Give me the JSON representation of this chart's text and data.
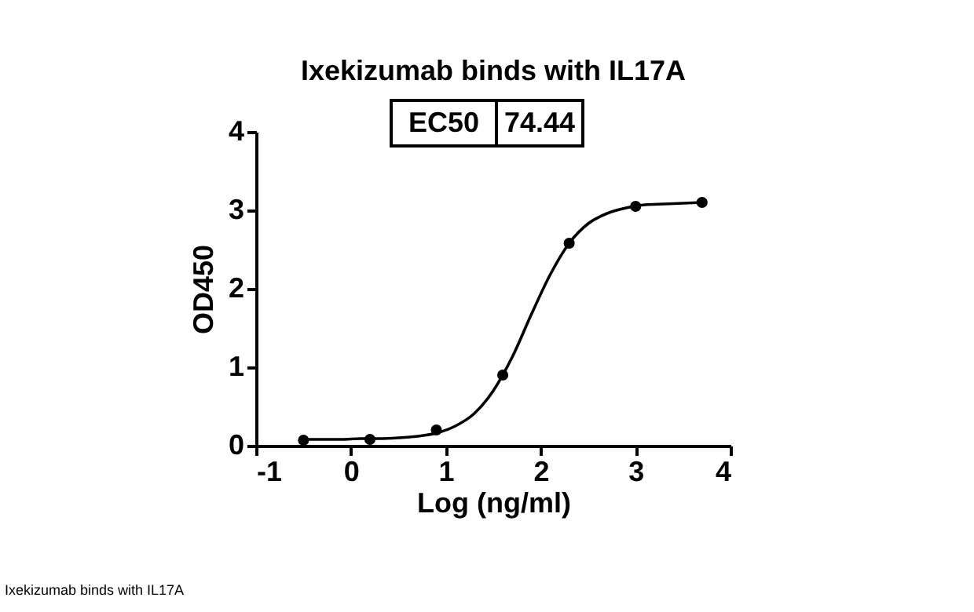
{
  "chart_data": {
    "type": "scatter",
    "title": "Ixekizumab binds with IL17A",
    "xlabel": "Log (ng/ml)",
    "ylabel": "OD450",
    "annotations": [
      "EC50",
      "74.44",
      "Ixekizumab binds with IL17A"
    ],
    "xlim": [
      -1,
      4
    ],
    "xticks": [
      -1,
      0,
      1,
      2,
      3,
      4
    ],
    "ylim": [
      0,
      4
    ],
    "yticks": [
      0,
      1,
      2,
      3,
      4
    ],
    "series": [
      {
        "marker": "circle",
        "color": "#000000",
        "x": [
          -0.5,
          0.2,
          0.9,
          1.6,
          2.3,
          3.0,
          3.7
        ],
        "values": [
          0.07,
          0.08,
          0.2,
          0.9,
          2.58,
          3.05,
          3.1
        ]
      },
      {
        "type": "line",
        "marker": "none",
        "color": "#000000",
        "x": [
          -0.5,
          -0.3,
          -0.1,
          0.1,
          0.3,
          0.5,
          0.7,
          0.9,
          1.1,
          1.3,
          1.5,
          1.7,
          1.9,
          2.1,
          2.3,
          2.5,
          2.7,
          2.9,
          3.1,
          3.3,
          3.5,
          3.7
        ],
        "values": [
          0.08,
          0.08,
          0.08,
          0.09,
          0.09,
          0.1,
          0.12,
          0.16,
          0.25,
          0.41,
          0.7,
          1.13,
          1.67,
          2.18,
          2.58,
          2.83,
          2.96,
          3.03,
          3.07,
          3.08,
          3.09,
          3.1
        ]
      }
    ]
  }
}
